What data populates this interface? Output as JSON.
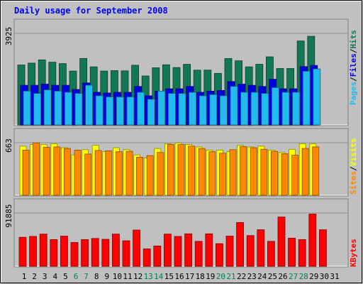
{
  "chart_data": {
    "type": "bar",
    "title": "Daily usage for September 2008",
    "days": [
      "1",
      "2",
      "3",
      "4",
      "5",
      "6",
      "7",
      "8",
      "9",
      "10",
      "11",
      "12",
      "13",
      "14",
      "15",
      "16",
      "17",
      "18",
      "19",
      "20",
      "21",
      "22",
      "23",
      "24",
      "25",
      "26",
      "27",
      "28",
      "29",
      "30",
      "31"
    ],
    "weekend_days": [
      6,
      7,
      13,
      14,
      20,
      21,
      27,
      28
    ],
    "panels": [
      {
        "id": "hits_files_pages",
        "max_label": "3925",
        "ymax": 3925,
        "series": [
          {
            "name": "Hits",
            "color": "#117755",
            "values": [
              2570,
              2650,
              2790,
              2690,
              2630,
              2310,
              2850,
              2490,
              2310,
              2330,
              2320,
              2560,
              2100,
              2450,
              2580,
              2460,
              2600,
              2350,
              2350,
              2210,
              2850,
              2750,
              2490,
              2600,
              2920,
              2420,
              2420,
              3600,
              3800,
              null,
              null
            ]
          },
          {
            "name": "Files",
            "color": "#0000dd",
            "values": [
              1700,
              1700,
              1750,
              1700,
              1700,
              1520,
              1800,
              1400,
              1370,
              1400,
              1400,
              1650,
              1250,
              1450,
              1550,
              1550,
              1650,
              1400,
              1450,
              1480,
              1860,
              1750,
              1700,
              1650,
              1960,
              1550,
              1550,
              2500,
              2550,
              null,
              null
            ]
          },
          {
            "name": "Pages",
            "color": "#22bbee",
            "values": [
              1450,
              1350,
              1500,
              1450,
              1400,
              1350,
              1700,
              1250,
              1200,
              1200,
              1200,
              1400,
              1100,
              1450,
              1350,
              1350,
              1400,
              1250,
              1300,
              1250,
              1650,
              1400,
              1400,
              1350,
              1600,
              1400,
              1400,
              2300,
              2400,
              null,
              null
            ]
          }
        ],
        "legend": [
          {
            "text": "Pages",
            "color": "#22bbee"
          },
          {
            "text": "Files",
            "color": "#0000dd"
          },
          {
            "text": "Hits",
            "color": "#117755"
          }
        ]
      },
      {
        "id": "visits_sites",
        "max_label": "663",
        "ymax": 663,
        "series": [
          {
            "name": "Visits",
            "color": "#ffff00",
            "values": [
              620,
              640,
              640,
              650,
              600,
              510,
              575,
              630,
              550,
              600,
              575,
              510,
              470,
              590,
              650,
              660,
              640,
              610,
              570,
              570,
              550,
              630,
              610,
              620,
              570,
              540,
              580,
              650,
              650,
              null,
              null
            ]
          },
          {
            "name": "Sites",
            "color": "#ff8800",
            "values": [
              570,
              662,
              605,
              610,
              590,
              570,
              520,
              565,
              560,
              550,
              555,
              480,
              500,
              540,
              640,
              640,
              620,
              590,
              550,
              530,
              575,
              615,
              600,
              580,
              555,
              525,
              505,
              590,
              610,
              null,
              null
            ]
          }
        ],
        "legend": [
          {
            "text": "Sites",
            "color": "#ff8800"
          },
          {
            "text": "Visits",
            "color": "#ffff00"
          }
        ]
      },
      {
        "id": "kbytes",
        "max_label": "91885",
        "ymax": 91885,
        "series": [
          {
            "name": "KBytes",
            "color": "#ff0000",
            "values": [
              50000,
              51500,
              55500,
              46000,
              52000,
              41000,
              46000,
              48000,
              46500,
              55500,
              44000,
              62500,
              30000,
              35000,
              55500,
              51500,
              56000,
              43000,
              56000,
              39000,
              52000,
              75500,
              53000,
              63000,
              43000,
              85000,
              48500,
              46000,
              90000,
              63000,
              null
            ]
          }
        ],
        "legend": [
          {
            "text": "KBytes",
            "color": "#ff0000"
          }
        ]
      }
    ]
  }
}
